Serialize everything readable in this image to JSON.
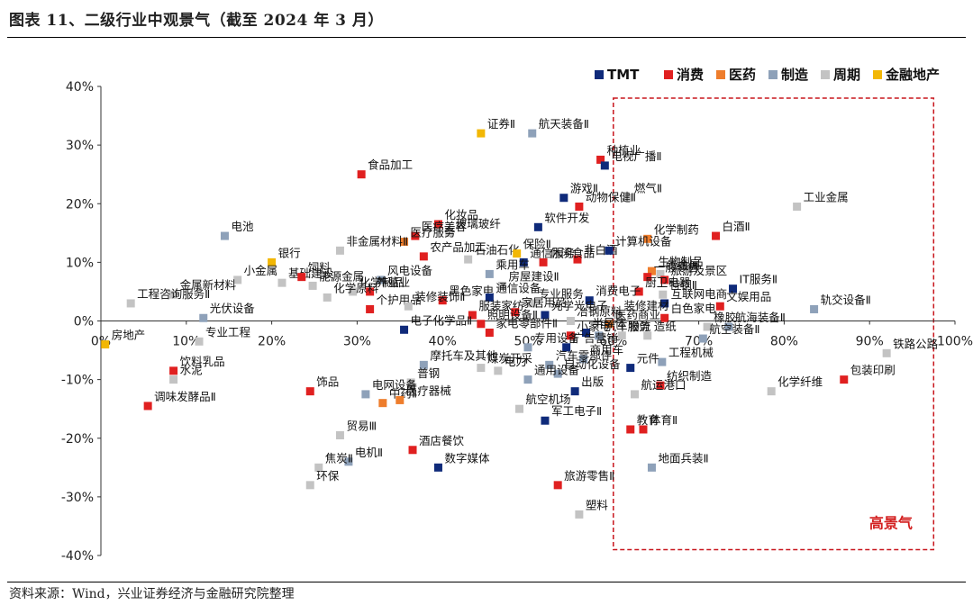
{
  "title": "图表 11、二级行业中观景气（截至 2024 年 3 月）",
  "source": "资料来源：Wind，兴业证券经济与金融研究院整理",
  "chart_data": {
    "type": "scatter",
    "title": "",
    "xlabel": "",
    "ylabel": "",
    "xlim": [
      0,
      100
    ],
    "ylim": [
      -40,
      40
    ],
    "x_ticks": [
      "0%",
      "10%",
      "20%",
      "30%",
      "40%",
      "50%",
      "60%",
      "70%",
      "80%",
      "90%",
      "100%"
    ],
    "y_ticks": [
      "40%",
      "30%",
      "20%",
      "10%",
      "0%",
      "-10%",
      "-20%",
      "-30%",
      "-40%"
    ],
    "grid": false,
    "legend_position": "top-right",
    "region_label": "高景气",
    "region_color": "#c8161d",
    "categories": [
      {
        "name": "TMT",
        "color": "#0f2a7a"
      },
      {
        "name": "消费",
        "color": "#e02020"
      },
      {
        "name": "医药",
        "color": "#ee7d2c"
      },
      {
        "name": "制造",
        "color": "#8ea1b9"
      },
      {
        "name": "周期",
        "color": "#c3c3c3"
      },
      {
        "name": "金融地产",
        "color": "#f2b705"
      }
    ],
    "points": [
      {
        "label": "航天装备Ⅱ",
        "x": 50.5,
        "y": 32,
        "cat": "制造"
      },
      {
        "label": "证券Ⅱ",
        "x": 44.5,
        "y": 32,
        "cat": "金融地产"
      },
      {
        "label": "食品加工",
        "x": 30.5,
        "y": 25,
        "cat": "消费"
      },
      {
        "label": "种植业",
        "x": 58.5,
        "y": 27.5,
        "cat": "消费"
      },
      {
        "label": "电视广播Ⅱ",
        "x": 59,
        "y": 26.5,
        "cat": "TMT"
      },
      {
        "label": "燃气Ⅱ",
        "x": 61.7,
        "y": 21,
        "cat": "周期"
      },
      {
        "label": "游戏Ⅱ",
        "x": 54.2,
        "y": 21,
        "cat": "TMT"
      },
      {
        "label": "动物保健Ⅱ",
        "x": 56,
        "y": 19.5,
        "cat": "消费"
      },
      {
        "label": "化妆品",
        "x": 39.5,
        "y": 16.5,
        "cat": "消费"
      },
      {
        "label": "玻璃玻纤",
        "x": 40.8,
        "y": 15,
        "cat": "周期"
      },
      {
        "label": "软件开发",
        "x": 51.2,
        "y": 16,
        "cat": "TMT"
      },
      {
        "label": "医疗美容",
        "x": 36.8,
        "y": 14.5,
        "cat": "消费"
      },
      {
        "label": "医疗服务",
        "x": 35.5,
        "y": 13.5,
        "cat": "医药"
      },
      {
        "label": "电池",
        "x": 14.5,
        "y": 14.5,
        "cat": "制造"
      },
      {
        "label": "白酒Ⅱ",
        "x": 72,
        "y": 14.5,
        "cat": "消费"
      },
      {
        "label": "工业金属",
        "x": 81.5,
        "y": 19.5,
        "cat": "周期"
      },
      {
        "label": "化学制药",
        "x": 64,
        "y": 14,
        "cat": "医药"
      },
      {
        "label": "非金属材料Ⅱ",
        "x": 28,
        "y": 12,
        "cat": "周期"
      },
      {
        "label": "银行",
        "x": 20,
        "y": 10,
        "cat": "金融地产"
      },
      {
        "label": "农产品加工",
        "x": 37.8,
        "y": 11,
        "cat": "消费"
      },
      {
        "label": "石油石化",
        "x": 43,
        "y": 10.5,
        "cat": "周期"
      },
      {
        "label": "保险Ⅱ",
        "x": 48.7,
        "y": 11.5,
        "cat": "金融地产"
      },
      {
        "label": "非白酒",
        "x": 55.8,
        "y": 10.5,
        "cat": "消费"
      },
      {
        "label": "计算机设备",
        "x": 59.5,
        "y": 12,
        "cat": "TMT"
      },
      {
        "label": "小金属",
        "x": 16,
        "y": 7,
        "cat": "周期"
      },
      {
        "label": "基础建设",
        "x": 21.2,
        "y": 6.5,
        "cat": "周期"
      },
      {
        "label": "饲料",
        "x": 23.5,
        "y": 7.5,
        "cat": "消费"
      },
      {
        "label": "风电设备",
        "x": 32.8,
        "y": 7,
        "cat": "制造"
      },
      {
        "label": "休闲食品",
        "x": 51.8,
        "y": 10,
        "cat": "消费"
      },
      {
        "label": "通信服务",
        "x": 49.5,
        "y": 10,
        "cat": "TMT"
      },
      {
        "label": "生物制品",
        "x": 64.5,
        "y": 8.5,
        "cat": "医药"
      },
      {
        "label": "一般零售",
        "x": 64,
        "y": 7.5,
        "cat": "消费"
      },
      {
        "label": "贵金属",
        "x": 65.5,
        "y": 8,
        "cat": "周期"
      },
      {
        "label": "旅游及景区",
        "x": 66,
        "y": 7,
        "cat": "消费"
      },
      {
        "label": "金属新材料",
        "x": 8.5,
        "y": 4.5,
        "cat": "周期"
      },
      {
        "label": "能源金属",
        "x": 24.8,
        "y": 6,
        "cat": "周期"
      },
      {
        "label": "化学制品",
        "x": 29.5,
        "y": 5,
        "cat": "周期"
      },
      {
        "label": "养殖业",
        "x": 31.5,
        "y": 5,
        "cat": "消费"
      },
      {
        "label": "乘用车",
        "x": 45.5,
        "y": 8,
        "cat": "制造"
      },
      {
        "label": "房屋建设Ⅱ",
        "x": 47,
        "y": 6,
        "cat": "周期"
      },
      {
        "label": "厨卫电器",
        "x": 63,
        "y": 5,
        "cat": "消费"
      },
      {
        "label": "特钢Ⅱ",
        "x": 65.8,
        "y": 4.5,
        "cat": "周期"
      },
      {
        "label": "IT服务Ⅱ",
        "x": 74,
        "y": 5.5,
        "cat": "TMT"
      },
      {
        "label": "黑色家电",
        "x": 40,
        "y": 3.5,
        "cat": "消费"
      },
      {
        "label": "通信设备",
        "x": 45.5,
        "y": 4,
        "cat": "TMT"
      },
      {
        "label": "专业服务",
        "x": 50.5,
        "y": 3,
        "cat": "周期"
      },
      {
        "label": "消费电子",
        "x": 57.2,
        "y": 3.5,
        "cat": "TMT"
      },
      {
        "label": "互联网电商",
        "x": 66,
        "y": 3,
        "cat": "TMT"
      },
      {
        "label": "文娱用品",
        "x": 72.5,
        "y": 2.5,
        "cat": "消费"
      },
      {
        "label": "轨交设备Ⅱ",
        "x": 83.5,
        "y": 2,
        "cat": "制造"
      },
      {
        "label": "工程咨询服务Ⅱ",
        "x": 3.5,
        "y": 3,
        "cat": "周期"
      },
      {
        "label": "光伏设备",
        "x": 12,
        "y": 0.5,
        "cat": "制造"
      },
      {
        "label": "化学原料",
        "x": 26.5,
        "y": 4,
        "cat": "周期"
      },
      {
        "label": "个护用品",
        "x": 31.5,
        "y": 2,
        "cat": "消费"
      },
      {
        "label": "装修装饰Ⅱ",
        "x": 36,
        "y": 2.5,
        "cat": "周期"
      },
      {
        "label": "服装家纺",
        "x": 43.5,
        "y": 1,
        "cat": "消费"
      },
      {
        "label": "家居用品",
        "x": 48.5,
        "y": 1.5,
        "cat": "消费"
      },
      {
        "label": "光学光电子",
        "x": 52,
        "y": 1,
        "cat": "TMT"
      },
      {
        "label": "装修建材",
        "x": 60.5,
        "y": 1,
        "cat": "周期"
      },
      {
        "label": "医药商业",
        "x": 59.5,
        "y": -0.5,
        "cat": "医药"
      },
      {
        "label": "白色家电",
        "x": 66,
        "y": 0.5,
        "cat": "消费"
      },
      {
        "label": "橡胶",
        "x": 71,
        "y": -1,
        "cat": "周期"
      },
      {
        "label": "航海装备Ⅱ",
        "x": 73.5,
        "y": -1,
        "cat": "制造"
      },
      {
        "label": "照明设备Ⅱ",
        "x": 44.5,
        "y": -0.5,
        "cat": "消费"
      },
      {
        "label": "冶钢原料",
        "x": 55,
        "y": 0,
        "cat": "周期"
      },
      {
        "label": "半导体",
        "x": 56.8,
        "y": -2,
        "cat": "TMT"
      },
      {
        "label": "汽车服务",
        "x": 58.3,
        "y": -2.5,
        "cat": "制造"
      },
      {
        "label": "电子化学品Ⅱ",
        "x": 35.5,
        "y": -1.5,
        "cat": "TMT"
      },
      {
        "label": "家电零部件Ⅱ",
        "x": 45.5,
        "y": -2,
        "cat": "消费"
      },
      {
        "label": "小家电",
        "x": 55,
        "y": -2.5,
        "cat": "消费"
      },
      {
        "label": "物流",
        "x": 61,
        "y": -2.5,
        "cat": "周期"
      },
      {
        "label": "造纸",
        "x": 64,
        "y": -2.5,
        "cat": "周期"
      },
      {
        "label": "航空装备Ⅱ",
        "x": 70.5,
        "y": -3,
        "cat": "制造"
      },
      {
        "label": "专业工程",
        "x": 11.5,
        "y": -3.5,
        "cat": "周期"
      },
      {
        "label": "房地产",
        "x": 0.5,
        "y": -4,
        "cat": "金融地产"
      },
      {
        "label": "专用设备",
        "x": 50,
        "y": -4.5,
        "cat": "制造"
      },
      {
        "label": "广告营销",
        "x": 54.5,
        "y": -4.5,
        "cat": "TMT"
      },
      {
        "label": "商用车",
        "x": 56.5,
        "y": -6.5,
        "cat": "制造"
      },
      {
        "label": "工程机械",
        "x": 65.7,
        "y": -7,
        "cat": "制造"
      },
      {
        "label": "饮料乳品",
        "x": 8.5,
        "y": -8.5,
        "cat": "消费"
      },
      {
        "label": "摩托车及其他",
        "x": 37.8,
        "y": -7.5,
        "cat": "制造"
      },
      {
        "label": "煤炭开采",
        "x": 44.5,
        "y": -8,
        "cat": "周期"
      },
      {
        "label": "汽车零部件",
        "x": 52.5,
        "y": -7.5,
        "cat": "制造"
      },
      {
        "label": "元件",
        "x": 62,
        "y": -8,
        "cat": "TMT"
      },
      {
        "label": "纺织制造",
        "x": 65.5,
        "y": -11,
        "cat": "消费"
      },
      {
        "label": "铁路公路",
        "x": 92,
        "y": -5.5,
        "cat": "周期"
      },
      {
        "label": "包装印刷",
        "x": 87,
        "y": -10,
        "cat": "消费"
      },
      {
        "label": "水泥",
        "x": 8.5,
        "y": -10,
        "cat": "周期"
      },
      {
        "label": "电力",
        "x": 46.5,
        "y": -8.5,
        "cat": "周期"
      },
      {
        "label": "自动化设备",
        "x": 53.5,
        "y": -9,
        "cat": "制造"
      },
      {
        "label": "普钢",
        "x": 36.3,
        "y": -10.5,
        "cat": "周期"
      },
      {
        "label": "通用设备",
        "x": 50,
        "y": -10,
        "cat": "制造"
      },
      {
        "label": "出版",
        "x": 55.5,
        "y": -12,
        "cat": "TMT"
      },
      {
        "label": "饰品",
        "x": 24.5,
        "y": -12,
        "cat": "消费"
      },
      {
        "label": "电网设备",
        "x": 31,
        "y": -12.5,
        "cat": "制造"
      },
      {
        "label": "中药Ⅱ",
        "x": 33,
        "y": -14,
        "cat": "医药"
      },
      {
        "label": "医疗器械",
        "x": 35,
        "y": -13.5,
        "cat": "医药"
      },
      {
        "label": "航运港口",
        "x": 62.5,
        "y": -12.5,
        "cat": "周期"
      },
      {
        "label": "化学纤维",
        "x": 78.5,
        "y": -12,
        "cat": "周期"
      },
      {
        "label": "调味发酵品Ⅱ",
        "x": 5.5,
        "y": -14.5,
        "cat": "消费"
      },
      {
        "label": "航空机场",
        "x": 49,
        "y": -15,
        "cat": "周期"
      },
      {
        "label": "军工电子Ⅱ",
        "x": 52,
        "y": -17,
        "cat": "TMT"
      },
      {
        "label": "教育",
        "x": 62,
        "y": -18.5,
        "cat": "消费"
      },
      {
        "label": "体育Ⅱ",
        "x": 63.5,
        "y": -18.5,
        "cat": "消费"
      },
      {
        "label": "贸易Ⅲ",
        "x": 28,
        "y": -19.5,
        "cat": "周期"
      },
      {
        "label": "电机Ⅱ",
        "x": 29,
        "y": -24,
        "cat": "制造"
      },
      {
        "label": "酒店餐饮",
        "x": 36.5,
        "y": -22,
        "cat": "消费"
      },
      {
        "label": "数字媒体",
        "x": 39.5,
        "y": -25,
        "cat": "TMT"
      },
      {
        "label": "焦炭Ⅱ",
        "x": 25.5,
        "y": -25,
        "cat": "周期"
      },
      {
        "label": "环保",
        "x": 24.5,
        "y": -28,
        "cat": "周期"
      },
      {
        "label": "地面兵装Ⅱ",
        "x": 64.5,
        "y": -25,
        "cat": "制造"
      },
      {
        "label": "旅游零售Ⅱ",
        "x": 53.5,
        "y": -28,
        "cat": "消费"
      },
      {
        "label": "塑料",
        "x": 56,
        "y": -33,
        "cat": "周期"
      }
    ]
  }
}
